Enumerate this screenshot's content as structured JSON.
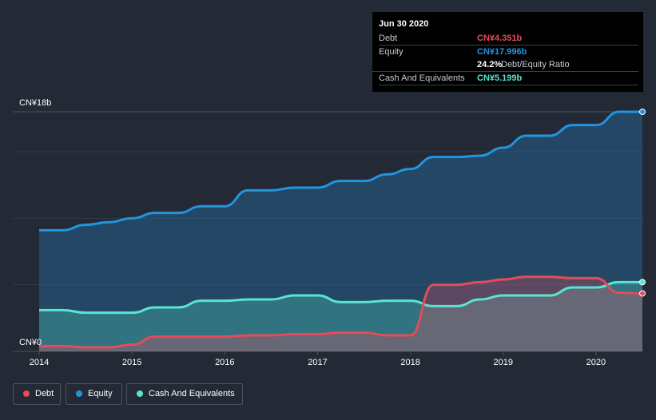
{
  "chart_data": {
    "type": "area",
    "title": "",
    "ylabel_top": "CN¥18b",
    "ylabel_bottom": "CN¥0",
    "ylim": [
      0,
      18
    ],
    "xlim": [
      2014,
      2020.5
    ],
    "x_ticks": [
      "2014",
      "2015",
      "2016",
      "2017",
      "2018",
      "2019",
      "2020"
    ],
    "series": [
      {
        "name": "Equity",
        "color": "#2394df",
        "x": [
          2014.0,
          2014.25,
          2014.5,
          2014.75,
          2015.0,
          2015.25,
          2015.5,
          2015.75,
          2016.0,
          2016.25,
          2016.5,
          2016.75,
          2017.0,
          2017.25,
          2017.5,
          2017.75,
          2018.0,
          2018.25,
          2018.5,
          2018.75,
          2019.0,
          2019.25,
          2019.5,
          2019.75,
          2020.0,
          2020.25,
          2020.5
        ],
        "values": [
          9.1,
          9.1,
          9.5,
          9.7,
          10.0,
          10.4,
          10.4,
          10.9,
          10.9,
          12.1,
          12.1,
          12.3,
          12.3,
          12.8,
          12.8,
          13.3,
          13.7,
          14.6,
          14.6,
          14.7,
          15.3,
          16.2,
          16.2,
          17.0,
          17.0,
          18.0,
          18.0
        ]
      },
      {
        "name": "Cash And Equivalents",
        "color": "#58e5d2",
        "x": [
          2014.0,
          2014.25,
          2014.5,
          2014.75,
          2015.0,
          2015.25,
          2015.5,
          2015.75,
          2016.0,
          2016.25,
          2016.5,
          2016.75,
          2017.0,
          2017.25,
          2017.5,
          2017.75,
          2018.0,
          2018.25,
          2018.5,
          2018.75,
          2019.0,
          2019.25,
          2019.5,
          2019.75,
          2020.0,
          2020.25,
          2020.5
        ],
        "values": [
          3.1,
          3.1,
          2.9,
          2.9,
          2.9,
          3.3,
          3.3,
          3.8,
          3.8,
          3.9,
          3.9,
          4.2,
          4.2,
          3.7,
          3.7,
          3.8,
          3.8,
          3.4,
          3.4,
          3.9,
          4.2,
          4.2,
          4.2,
          4.8,
          4.8,
          5.2,
          5.199
        ]
      },
      {
        "name": "Debt",
        "color": "#e64b58",
        "x": [
          2014.0,
          2014.25,
          2014.5,
          2014.75,
          2015.0,
          2015.25,
          2015.5,
          2015.75,
          2016.0,
          2016.25,
          2016.5,
          2016.75,
          2017.0,
          2017.25,
          2017.5,
          2017.75,
          2018.0,
          2018.25,
          2018.5,
          2018.75,
          2019.0,
          2019.25,
          2019.5,
          2019.75,
          2020.0,
          2020.25,
          2020.5
        ],
        "values": [
          0.4,
          0.4,
          0.3,
          0.3,
          0.5,
          1.1,
          1.1,
          1.1,
          1.1,
          1.2,
          1.2,
          1.3,
          1.3,
          1.4,
          1.4,
          1.2,
          1.2,
          5.0,
          5.0,
          5.2,
          5.4,
          5.6,
          5.6,
          5.5,
          5.5,
          4.4,
          4.351
        ]
      }
    ],
    "legend": [
      "Debt",
      "Equity",
      "Cash And Equivalents"
    ],
    "legend_colors": [
      "#e64b58",
      "#2394df",
      "#58e5d2"
    ]
  },
  "tooltip": {
    "date": "Jun 30 2020",
    "debt_label": "Debt",
    "debt_value": "CN¥4.351b",
    "equity_label": "Equity",
    "equity_value": "CN¥17.996b",
    "ratio_value": "24.2%",
    "ratio_label": "Debt/Equity Ratio",
    "cash_label": "Cash And Equivalents",
    "cash_value": "CN¥5.199b"
  }
}
